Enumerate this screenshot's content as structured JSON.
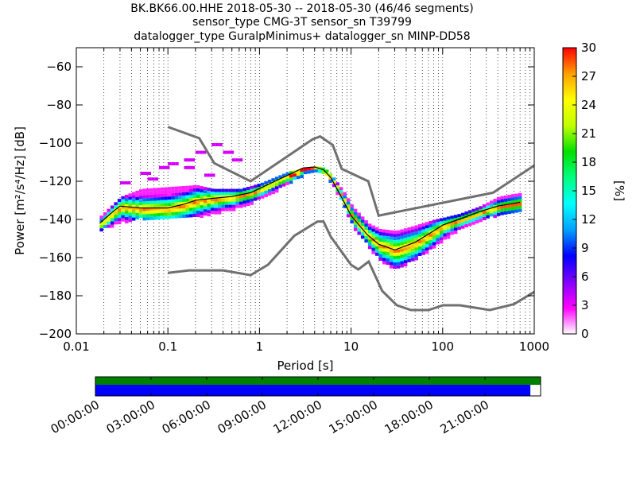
{
  "title": {
    "line1": "BK.BK66.00.HHE   2018-05-30 -- 2018-05-30  (46/46 segments)",
    "line2": "sensor_type CMG-3T sensor_sn T39799",
    "line3": "datalogger_type GuralpMinimus+ datalogger_sn MINP-DD58"
  },
  "chart_data": [
    {
      "type": "heatmap",
      "xlabel": "Period [s]",
      "ylabel": "Power [m²/s⁴/Hz] [dB]",
      "x_scale": "log",
      "xlim": [
        0.01,
        1000
      ],
      "ylim": [
        -200,
        -50
      ],
      "x_ticks": [
        {
          "value": 0.01,
          "label": "0.01"
        },
        {
          "value": 0.1,
          "label": "0.1"
        },
        {
          "value": 1,
          "label": "1"
        },
        {
          "value": 10,
          "label": "10"
        },
        {
          "value": 100,
          "label": "100"
        },
        {
          "value": 1000,
          "label": "1000"
        }
      ],
      "y_ticks": [
        {
          "value": -60,
          "label": "−60"
        },
        {
          "value": -80,
          "label": "−80"
        },
        {
          "value": -100,
          "label": "−100"
        },
        {
          "value": -120,
          "label": "−120"
        },
        {
          "value": -140,
          "label": "−140"
        },
        {
          "value": -160,
          "label": "−160"
        },
        {
          "value": -180,
          "label": "−180"
        },
        {
          "value": -200,
          "label": "−200"
        }
      ],
      "grid": "dotted vertical at minor log ticks",
      "colorbar": {
        "label": "[%]",
        "range": [
          0,
          30
        ],
        "ticks": [
          {
            "value": 0,
            "label": "0"
          },
          {
            "value": 3,
            "label": "3"
          },
          {
            "value": 6,
            "label": "6"
          },
          {
            "value": 9,
            "label": "9"
          },
          {
            "value": 12,
            "label": "12"
          },
          {
            "value": 15,
            "label": "15"
          },
          {
            "value": 18,
            "label": "18"
          },
          {
            "value": 21,
            "label": "21"
          },
          {
            "value": 24,
            "label": "24"
          },
          {
            "value": 27,
            "label": "27"
          },
          {
            "value": 30,
            "label": "30"
          }
        ],
        "colors": [
          "#ffffff",
          "#ff00ff",
          "#8000ff",
          "#0000ff",
          "#00a0ff",
          "#00ffff",
          "#00ff80",
          "#00e000",
          "#c0ff00",
          "#ffff00",
          "#ffa000",
          "#ff0000"
        ]
      },
      "mode_curve": {
        "name": "mode",
        "color": "#000000",
        "points": [
          [
            0.018,
            -142
          ],
          [
            0.025,
            -136
          ],
          [
            0.03,
            -133
          ],
          [
            0.05,
            -134
          ],
          [
            0.1,
            -134
          ],
          [
            0.15,
            -132
          ],
          [
            0.2,
            -130
          ],
          [
            0.3,
            -129
          ],
          [
            0.5,
            -128
          ],
          [
            0.8,
            -126
          ],
          [
            1.2,
            -122
          ],
          [
            2,
            -117
          ],
          [
            3,
            -113
          ],
          [
            4,
            -112.5
          ],
          [
            5,
            -114
          ],
          [
            6,
            -118
          ],
          [
            8,
            -129
          ],
          [
            10,
            -138
          ],
          [
            15,
            -148
          ],
          [
            20,
            -153
          ],
          [
            30,
            -156
          ],
          [
            50,
            -152
          ],
          [
            80,
            -146
          ],
          [
            100,
            -143
          ],
          [
            150,
            -140
          ],
          [
            250,
            -136
          ],
          [
            400,
            -133
          ],
          [
            700,
            -131
          ]
        ]
      },
      "distribution_upper": [
        [
          0.018,
          -138
        ],
        [
          0.03,
          -128
        ],
        [
          0.05,
          -124
        ],
        [
          0.1,
          -123
        ],
        [
          0.2,
          -122
        ],
        [
          0.3,
          -124
        ],
        [
          0.6,
          -124
        ],
        [
          1,
          -121
        ],
        [
          2,
          -115
        ],
        [
          3,
          -113
        ],
        [
          4,
          -112
        ],
        [
          5,
          -113
        ],
        [
          6,
          -117
        ],
        [
          8,
          -125
        ],
        [
          10,
          -133
        ],
        [
          15,
          -142
        ],
        [
          20,
          -145
        ],
        [
          30,
          -146
        ],
        [
          50,
          -143
        ],
        [
          80,
          -140
        ],
        [
          100,
          -139
        ],
        [
          150,
          -137
        ],
        [
          250,
          -133
        ],
        [
          400,
          -128
        ],
        [
          700,
          -126
        ]
      ],
      "distribution_lower": [
        [
          0.018,
          -145
        ],
        [
          0.03,
          -141
        ],
        [
          0.05,
          -139
        ],
        [
          0.1,
          -139
        ],
        [
          0.2,
          -138
        ],
        [
          0.3,
          -137
        ],
        [
          0.6,
          -133
        ],
        [
          1,
          -129
        ],
        [
          2,
          -121
        ],
        [
          3,
          -116
        ],
        [
          4,
          -114
        ],
        [
          5,
          -116
        ],
        [
          6,
          -121
        ],
        [
          8,
          -132
        ],
        [
          10,
          -143
        ],
        [
          15,
          -154
        ],
        [
          20,
          -161
        ],
        [
          30,
          -166
        ],
        [
          50,
          -160
        ],
        [
          80,
          -154
        ],
        [
          100,
          -150
        ],
        [
          150,
          -145
        ],
        [
          250,
          -140
        ],
        [
          400,
          -137
        ],
        [
          700,
          -136
        ]
      ],
      "scatter_tail": [
        [
          0.03,
          -120
        ],
        [
          0.05,
          -115
        ],
        [
          0.08,
          -112
        ],
        [
          0.1,
          -110
        ],
        [
          0.15,
          -108
        ],
        [
          0.2,
          -104
        ],
        [
          0.3,
          -100
        ],
        [
          0.4,
          -104
        ],
        [
          0.5,
          -108
        ],
        [
          0.25,
          -116
        ],
        [
          0.15,
          -112
        ],
        [
          0.06,
          -118
        ]
      ],
      "noise_models": [
        {
          "name": "NHNM",
          "color": "#707070",
          "points": [
            [
              0.1,
              -91.5
            ],
            [
              0.22,
              -97.4
            ],
            [
              0.32,
              -110.5
            ],
            [
              0.8,
              -120
            ],
            [
              3.8,
              -98
            ],
            [
              4.6,
              -96.5
            ],
            [
              6.3,
              -101
            ],
            [
              7.9,
              -113.5
            ],
            [
              15.4,
              -120
            ],
            [
              20,
              -138
            ],
            [
              354.8,
              -126
            ],
            [
              10000,
              -80
            ]
          ]
        },
        {
          "name": "NLNM",
          "color": "#707070",
          "points": [
            [
              0.1,
              -168
            ],
            [
              0.17,
              -166.7
            ],
            [
              0.4,
              -166.7
            ],
            [
              0.8,
              -169.2
            ],
            [
              1.24,
              -163.7
            ],
            [
              2.4,
              -148.6
            ],
            [
              4.3,
              -141.1
            ],
            [
              5,
              -141.1
            ],
            [
              6,
              -149
            ],
            [
              10,
              -163.8
            ],
            [
              12,
              -166.2
            ],
            [
              15.6,
              -162.1
            ],
            [
              21.9,
              -177.5
            ],
            [
              31.6,
              -185
            ],
            [
              45,
              -187.5
            ],
            [
              70,
              -187.5
            ],
            [
              101,
              -185
            ],
            [
              154,
              -185
            ],
            [
              328,
              -187.5
            ],
            [
              600,
              -184.4
            ],
            [
              1000,
              -178
            ]
          ]
        }
      ]
    },
    {
      "type": "bar",
      "title": "",
      "series": [
        {
          "name": "",
          "color": "#008000",
          "coverage": [
            [
              0,
              1
            ]
          ]
        },
        {
          "name": "",
          "color": "#0000ff",
          "coverage": [
            [
              0,
              0.977
            ]
          ]
        }
      ],
      "time_ticks": [
        "00:00:00",
        "03:00:00",
        "06:00:00",
        "09:00:00",
        "12:00:00",
        "15:00:00",
        "18:00:00",
        "21:00:00"
      ]
    }
  ]
}
